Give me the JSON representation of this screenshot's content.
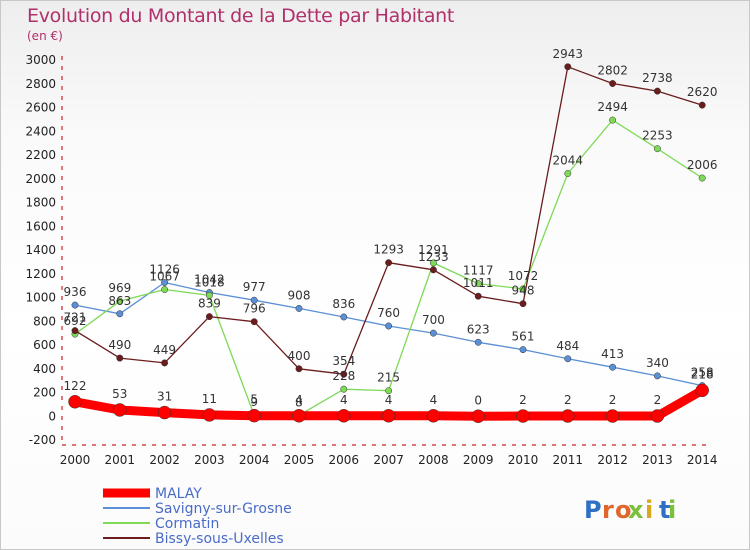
{
  "header": {
    "title": "Evolution du Montant de la Dette par Habitant",
    "unit": "(en €)"
  },
  "brand": {
    "logo_text": "Proxiti"
  },
  "chart_data": {
    "type": "line",
    "title": "Evolution du Montant de la Dette par Habitant",
    "ylabel": "(en €)",
    "xlabel": "",
    "x": [
      "2000",
      "2001",
      "2002",
      "2003",
      "2004",
      "2005",
      "2006",
      "2007",
      "2008",
      "2009",
      "2010",
      "2011",
      "2012",
      "2013",
      "2014"
    ],
    "ylim": [
      -200,
      3000
    ],
    "yticks": [
      -200,
      0,
      200,
      400,
      600,
      800,
      1000,
      1200,
      1400,
      1600,
      1800,
      2000,
      2200,
      2400,
      2600,
      2800,
      3000
    ],
    "grid": false,
    "legend": "bottom-left",
    "series": [
      {
        "name": "MALAY",
        "color": "#ff0000",
        "values": [
          122,
          53,
          31,
          11,
          5,
          4,
          4,
          4,
          4,
          0,
          2,
          2,
          2,
          2,
          218
        ]
      },
      {
        "name": "Savigny-sur-Grosne",
        "color": "#5b8fd6",
        "values": [
          936,
          863,
          1126,
          1042,
          977,
          908,
          836,
          760,
          700,
          623,
          561,
          484,
          413,
          340,
          258
        ]
      },
      {
        "name": "Cormatin",
        "color": "#7ed957",
        "values": [
          692,
          969,
          1067,
          1018,
          9,
          8,
          228,
          215,
          1291,
          1117,
          1072,
          2044,
          2494,
          2253,
          2006
        ]
      },
      {
        "name": "Bissy-sous-Uxelles",
        "color": "#6b1c1c",
        "values": [
          721,
          490,
          449,
          839,
          796,
          400,
          354,
          1293,
          1233,
          1011,
          948,
          2943,
          2802,
          2738,
          2620
        ]
      }
    ]
  }
}
